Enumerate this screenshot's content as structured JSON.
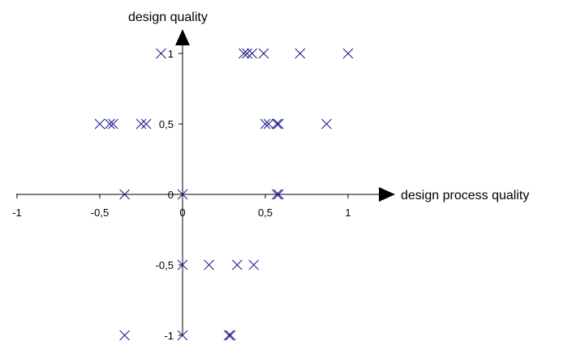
{
  "chart_data": {
    "type": "scatter",
    "xlabel": "design process quality",
    "ylabel": "design quality",
    "xlim": [
      -1,
      1
    ],
    "ylim": [
      -1,
      1
    ],
    "x_ticks": [
      -1,
      -0.5,
      0,
      0.5,
      1
    ],
    "x_tick_labels": [
      "-1",
      "-0,5",
      "0",
      "0,5",
      "1"
    ],
    "y_ticks": [
      1,
      0.5,
      0,
      -0.5,
      -1
    ],
    "y_tick_labels": [
      "1",
      "0,5",
      "0",
      "-0,5",
      "-1"
    ],
    "grid": false,
    "marker": "x",
    "color": "#1f1f8f",
    "points": [
      {
        "x": -0.13,
        "y": 1
      },
      {
        "x": 0.37,
        "y": 1
      },
      {
        "x": 0.39,
        "y": 1
      },
      {
        "x": 0.42,
        "y": 1
      },
      {
        "x": 0.49,
        "y": 1
      },
      {
        "x": 0.71,
        "y": 1
      },
      {
        "x": 1.0,
        "y": 1
      },
      {
        "x": -0.5,
        "y": 0.5
      },
      {
        "x": -0.44,
        "y": 0.5
      },
      {
        "x": -0.42,
        "y": 0.5
      },
      {
        "x": -0.25,
        "y": 0.5
      },
      {
        "x": -0.22,
        "y": 0.5
      },
      {
        "x": 0.5,
        "y": 0.5
      },
      {
        "x": 0.52,
        "y": 0.5
      },
      {
        "x": 0.57,
        "y": 0.5
      },
      {
        "x": 0.58,
        "y": 0.5
      },
      {
        "x": 0.87,
        "y": 0.5
      },
      {
        "x": -0.35,
        "y": 0
      },
      {
        "x": 0.0,
        "y": 0
      },
      {
        "x": 0.57,
        "y": 0
      },
      {
        "x": 0.58,
        "y": 0
      },
      {
        "x": 0.0,
        "y": -0.5
      },
      {
        "x": 0.16,
        "y": -0.5
      },
      {
        "x": 0.33,
        "y": -0.5
      },
      {
        "x": 0.43,
        "y": -0.5
      },
      {
        "x": -0.35,
        "y": -1
      },
      {
        "x": 0.0,
        "y": -1
      },
      {
        "x": 0.28,
        "y": -1
      },
      {
        "x": 0.29,
        "y": -1
      }
    ]
  }
}
